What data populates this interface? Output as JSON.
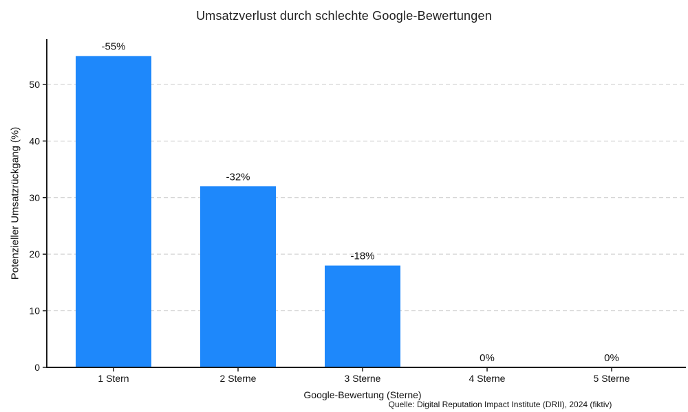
{
  "chart_data": {
    "type": "bar",
    "title": "Umsatzverlust durch schlechte Google-Bewertungen",
    "categories": [
      "1 Stern",
      "2 Sterne",
      "3 Sterne",
      "4 Sterne",
      "5 Sterne"
    ],
    "values": [
      55,
      32,
      18,
      0,
      0
    ],
    "bar_labels": [
      "-55%",
      "-32%",
      "-18%",
      "0%",
      "0%"
    ],
    "xlabel": "Google-Bewertung (Sterne)",
    "ylabel": "Potenzieller Umsatzrückgang (%)",
    "yticks": [
      0,
      10,
      20,
      30,
      40,
      50
    ],
    "ylim": [
      0,
      58
    ],
    "grid": true,
    "legend": false,
    "source": "Quelle: Digital Reputation Impact Institute (DRII), 2024 (fiktiv)",
    "bar_color": "#1E88FB",
    "grid_color": "#c9c9c9",
    "axis_color": "#1a1a1a",
    "text_color": "#111111",
    "background_color": "#ffffff"
  }
}
